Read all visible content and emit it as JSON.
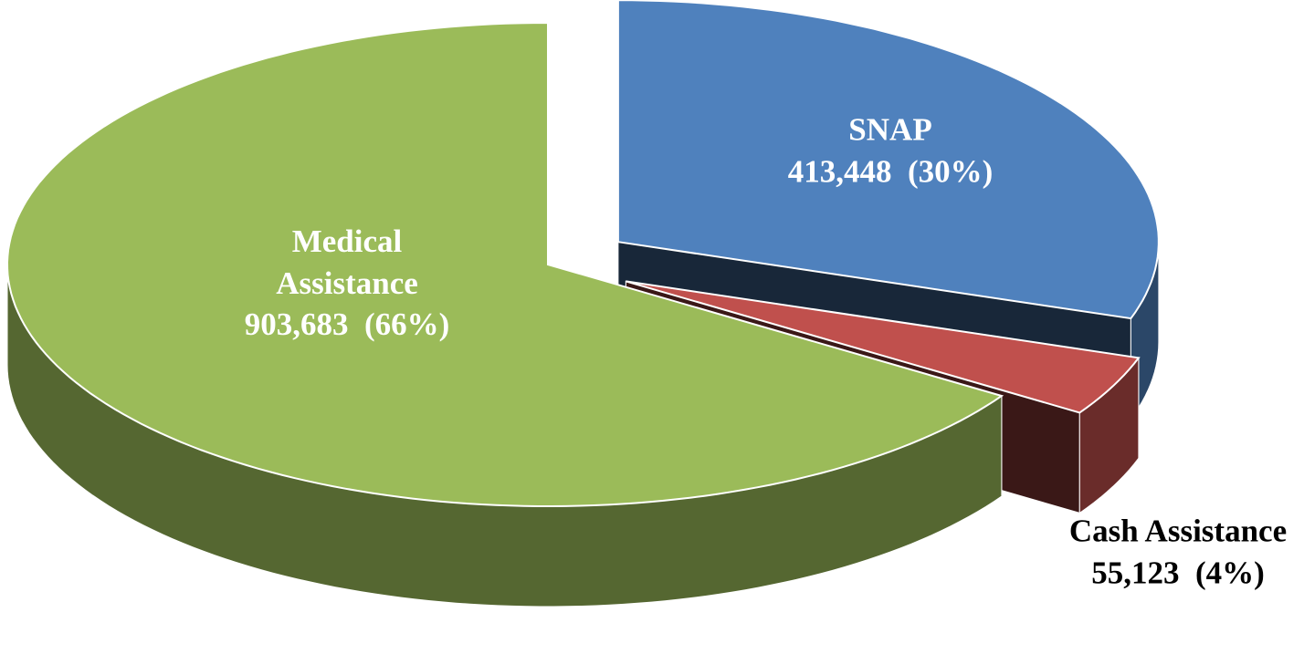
{
  "chart_data": {
    "type": "pie",
    "categories": [
      "SNAP",
      "Cash Assistance",
      "Medical Assistance"
    ],
    "values": [
      413448,
      55123,
      903683
    ],
    "value_labels": [
      "413,448  (30%)",
      "55,123  (4%)",
      "903,683  (66%)"
    ],
    "colors": [
      "#4f81bd",
      "#c0504d",
      "#9bbb59"
    ]
  }
}
